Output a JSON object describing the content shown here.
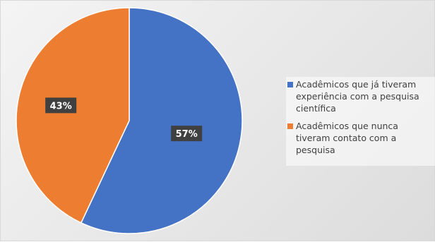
{
  "chart_data": {
    "type": "pie",
    "title": "",
    "series": [
      {
        "categories": [
          "Acadêmicos que já tiveram experiência com a pesquisa científica",
          "Acadêmicos que nunca tiveram contato com a pesquisa"
        ],
        "values": [
          57,
          43
        ],
        "data_labels": [
          "57%",
          "43%"
        ],
        "colors": [
          "#4472c4",
          "#ed7d31"
        ]
      }
    ],
    "legend": "right"
  }
}
